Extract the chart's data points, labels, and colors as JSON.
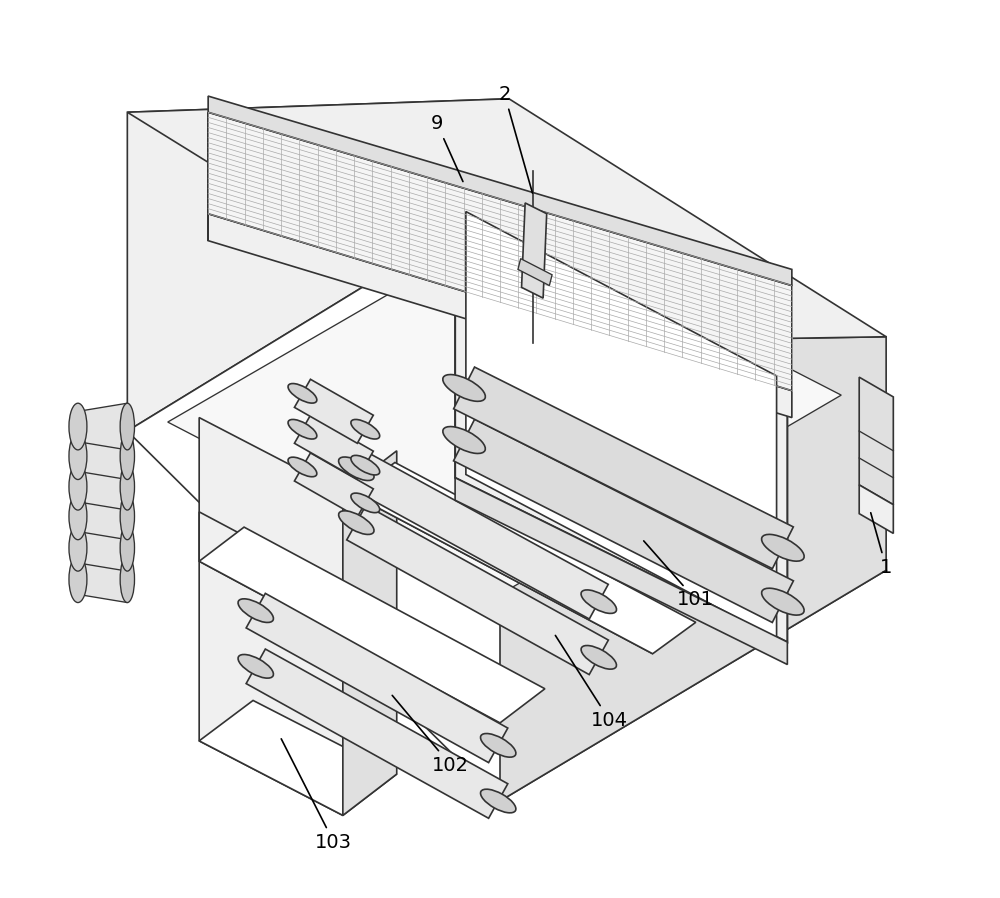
{
  "bg_color": "#ffffff",
  "line_color": "#333333",
  "line_width": 1.2,
  "fill_light": "#f0f0f0",
  "fill_medium": "#e0e0e0",
  "fill_dark": "#c8c8c8",
  "fill_white": "#ffffff",
  "fill_inner": "#f8f8f8",
  "mesh_color": "#d0d0d0",
  "figsize": [
    10.0,
    8.98
  ],
  "dpi": 100
}
